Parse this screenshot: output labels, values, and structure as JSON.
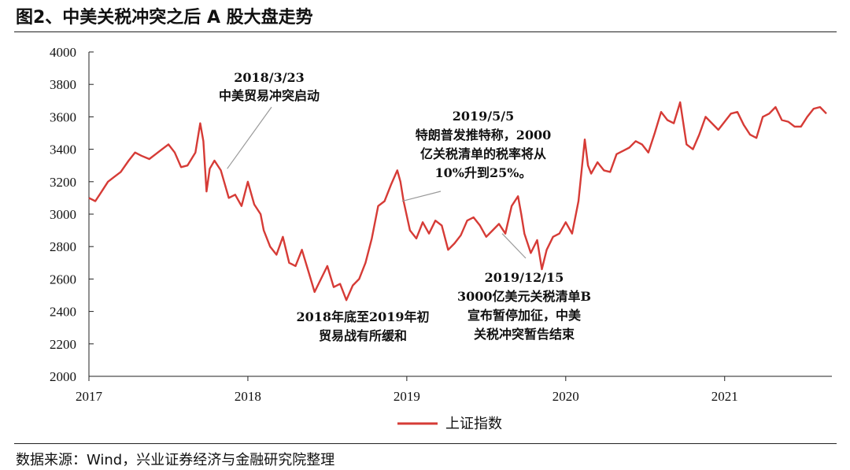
{
  "figure": {
    "title": "图2、中美关税冲突之后 A 股大盘走势",
    "source": "数据来源：Wind，兴业证券经济与金融研究院整理"
  },
  "colors": {
    "line": "#d63b36",
    "axis": "#222222",
    "leader": "#9a9a9a"
  },
  "chart_data": {
    "type": "line",
    "title": "",
    "xlabel": "",
    "ylabel": "",
    "ylim": [
      2000,
      4000
    ],
    "xlim": [
      2017.0,
      2021.65
    ],
    "yticks": [
      2000,
      2200,
      2400,
      2600,
      2800,
      3000,
      3200,
      3400,
      3600,
      3800,
      4000
    ],
    "xticks": [
      "2017",
      "2018",
      "2019",
      "2020",
      "2021"
    ],
    "legend": {
      "position": "bottom-center",
      "entries": [
        "上证指数"
      ]
    },
    "series": [
      {
        "name": "上证指数",
        "x": [
          2017.0,
          2017.04,
          2017.08,
          2017.12,
          2017.16,
          2017.2,
          2017.25,
          2017.29,
          2017.33,
          2017.38,
          2017.42,
          2017.46,
          2017.5,
          2017.54,
          2017.58,
          2017.62,
          2017.67,
          2017.7,
          2017.72,
          2017.74,
          2017.76,
          2017.79,
          2017.83,
          2017.88,
          2017.92,
          2017.96,
          2018.0,
          2018.04,
          2018.08,
          2018.1,
          2018.14,
          2018.18,
          2018.22,
          2018.26,
          2018.3,
          2018.34,
          2018.38,
          2018.42,
          2018.46,
          2018.5,
          2018.54,
          2018.58,
          2018.62,
          2018.66,
          2018.7,
          2018.74,
          2018.78,
          2018.82,
          2018.86,
          2018.9,
          2018.94,
          2018.96,
          2018.98,
          2019.02,
          2019.06,
          2019.1,
          2019.14,
          2019.18,
          2019.22,
          2019.26,
          2019.3,
          2019.34,
          2019.38,
          2019.42,
          2019.46,
          2019.5,
          2019.54,
          2019.58,
          2019.62,
          2019.66,
          2019.7,
          2019.72,
          2019.74,
          2019.78,
          2019.82,
          2019.85,
          2019.88,
          2019.92,
          2019.96,
          2020.0,
          2020.04,
          2020.08,
          2020.12,
          2020.14,
          2020.16,
          2020.2,
          2020.24,
          2020.28,
          2020.32,
          2020.36,
          2020.4,
          2020.44,
          2020.48,
          2020.52,
          2020.56,
          2020.6,
          2020.64,
          2020.68,
          2020.72,
          2020.76,
          2020.8,
          2020.84,
          2020.88,
          2020.92,
          2020.96,
          2021.0,
          2021.04,
          2021.08,
          2021.12,
          2021.16,
          2021.2,
          2021.24,
          2021.28,
          2021.32,
          2021.36,
          2021.4,
          2021.44,
          2021.48,
          2021.52,
          2021.56,
          2021.6,
          2021.64
        ],
        "values": [
          3100,
          3080,
          3140,
          3200,
          3230,
          3260,
          3330,
          3380,
          3360,
          3340,
          3370,
          3400,
          3430,
          3380,
          3290,
          3300,
          3380,
          3560,
          3450,
          3140,
          3280,
          3330,
          3270,
          3100,
          3120,
          3050,
          3200,
          3060,
          3000,
          2900,
          2800,
          2750,
          2860,
          2700,
          2680,
          2780,
          2650,
          2520,
          2600,
          2680,
          2550,
          2570,
          2470,
          2560,
          2600,
          2700,
          2850,
          3050,
          3080,
          3180,
          3270,
          3200,
          3080,
          2900,
          2850,
          2950,
          2880,
          2960,
          2930,
          2780,
          2820,
          2870,
          2960,
          2980,
          2930,
          2860,
          2900,
          2940,
          2880,
          3050,
          3110,
          3000,
          2880,
          2760,
          2840,
          2660,
          2780,
          2860,
          2880,
          2950,
          2880,
          3080,
          3460,
          3300,
          3250,
          3320,
          3270,
          3260,
          3370,
          3390,
          3410,
          3450,
          3430,
          3380,
          3500,
          3630,
          3580,
          3560,
          3690,
          3430,
          3400,
          3490,
          3600,
          3560,
          3520,
          3570,
          3620,
          3630,
          3550,
          3490,
          3470,
          3600,
          3620,
          3660,
          3580,
          3570,
          3540,
          3540,
          3600,
          3650,
          3660,
          3620
        ]
      }
    ],
    "annotations": [
      {
        "lines": [
          "2018/3/23",
          "中美贸易冲突启动"
        ],
        "at": [
          2017.87,
          3280
        ]
      },
      {
        "lines": [
          "2019/5/5",
          "特朗普发推特称，2000",
          "亿关税清单的税率将从",
          "10%升到25%。"
        ],
        "at": [
          2018.97,
          3080
        ]
      },
      {
        "lines": [
          "2018年底至2019年初",
          "贸易战有所缓和"
        ],
        "at": [
          2018.6,
          2500
        ]
      },
      {
        "lines": [
          "2019/12/15",
          "3000亿美元关税清单B",
          "宣布暂停加征，中美",
          "关税冲突暂告结束"
        ],
        "at": [
          2019.6,
          2880
        ]
      }
    ]
  }
}
